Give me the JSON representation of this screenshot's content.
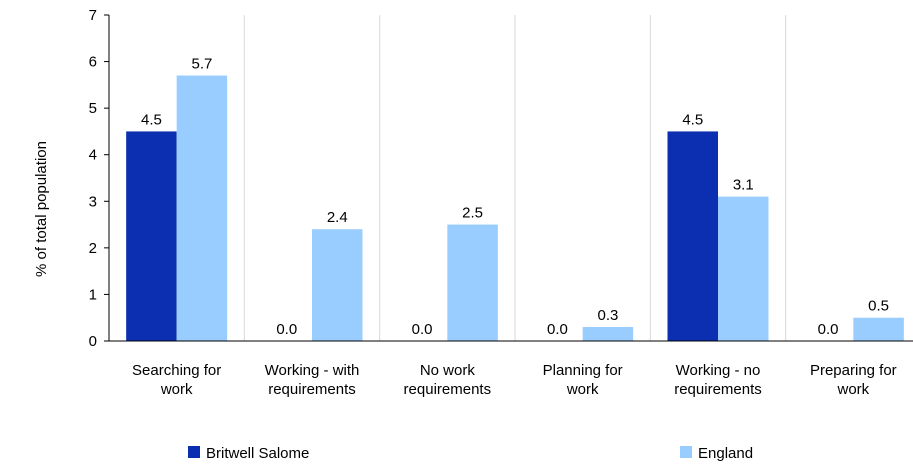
{
  "chart_data": {
    "type": "bar",
    "title": "",
    "xlabel": "",
    "ylabel": "% of total population",
    "ylim": [
      0,
      7
    ],
    "yticks": [
      "0",
      "1",
      "2",
      "3",
      "4",
      "5",
      "6",
      "7"
    ],
    "grid": "vertical separators",
    "legend_position": "bottom",
    "categories": [
      [
        "Searching for",
        "work"
      ],
      [
        "Working - with",
        "requirements"
      ],
      [
        "No work",
        "requirements"
      ],
      [
        "Planning for",
        "work"
      ],
      [
        "Working - no",
        "requirements"
      ],
      [
        "Preparing for",
        "work"
      ]
    ],
    "series": [
      {
        "name": "Britwell Salome",
        "color": "#0b2fb0",
        "values": [
          4.5,
          0.0,
          0.0,
          0.0,
          4.5,
          0.0
        ],
        "labels": [
          "4.5",
          "0.0",
          "0.0",
          "0.0",
          "4.5",
          "0.0"
        ]
      },
      {
        "name": "England",
        "color": "#99ccff",
        "values": [
          5.7,
          2.4,
          2.5,
          0.3,
          3.1,
          0.5
        ],
        "labels": [
          "5.7",
          "2.4",
          "2.5",
          "0.3",
          "3.1",
          "0.5"
        ]
      }
    ]
  }
}
